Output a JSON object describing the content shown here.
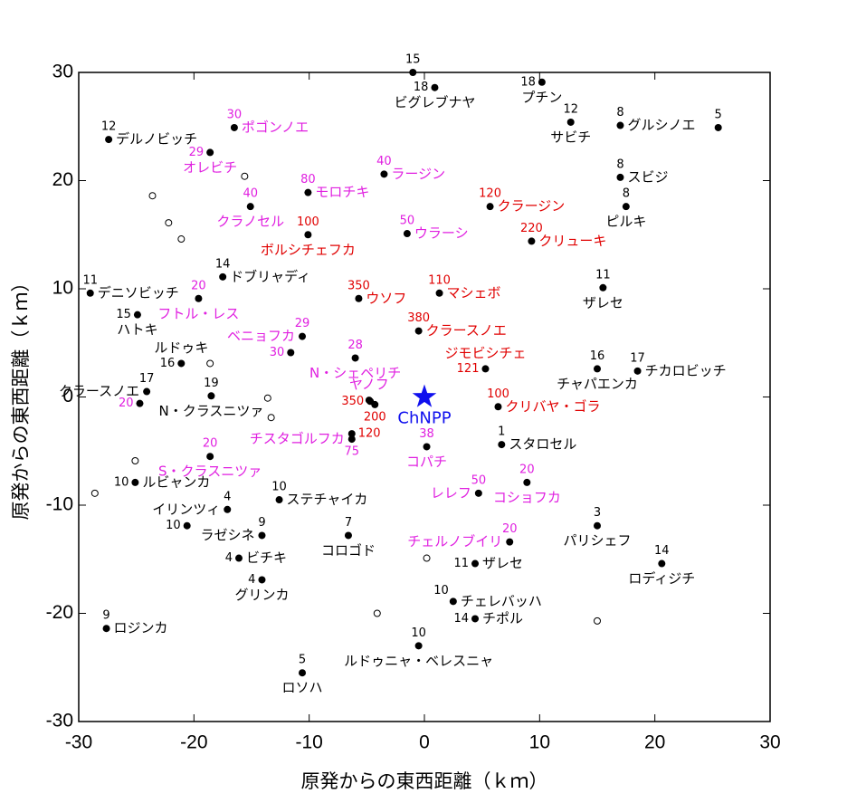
{
  "chart_data": {
    "type": "scatter",
    "x_label": "原発からの東西距離（ｋｍ）",
    "y_label": "原発からの東西距離（ｋｍ）",
    "xlim": [
      -30,
      30
    ],
    "ylim": [
      -30,
      30
    ],
    "xticks": [
      -30,
      -20,
      -10,
      0,
      10,
      20,
      30
    ],
    "yticks": [
      -30,
      -20,
      -10,
      0,
      10,
      20,
      30
    ],
    "site": {
      "name": "ChNPP",
      "x": 0,
      "y": 0,
      "color": "#1010ee"
    },
    "villages": [
      {
        "value": 15,
        "x": -1.0,
        "y": 30.0,
        "color": "black"
      },
      {
        "value": 18,
        "name": "ビグレブナヤ",
        "x": 0.9,
        "y": 28.6,
        "color": "black"
      },
      {
        "value": 18,
        "name": "プチン",
        "x": 10.2,
        "y": 29.1,
        "color": "black"
      },
      {
        "value": 12,
        "name": "サビチ",
        "x": 12.7,
        "y": 25.4,
        "color": "black"
      },
      {
        "value": 8,
        "name": "グルシノエ",
        "x": 17.0,
        "y": 25.1,
        "color": "black"
      },
      {
        "value": 5,
        "x": 25.5,
        "y": 24.9,
        "color": "black"
      },
      {
        "value": 12,
        "name": "デルノビッチ",
        "x": -27.4,
        "y": 23.8,
        "color": "black"
      },
      {
        "value": 8,
        "name": "スビジ",
        "x": 17.0,
        "y": 20.3,
        "color": "black"
      },
      {
        "value": 8,
        "name": "ピルキ",
        "x": 17.5,
        "y": 17.6,
        "color": "black"
      },
      {
        "value": 11,
        "name": "ザレセ",
        "x": 15.5,
        "y": 10.1,
        "color": "black"
      },
      {
        "value": 11,
        "name": "デニソビッチ",
        "x": -29.0,
        "y": 9.6,
        "color": "black"
      },
      {
        "value": 14,
        "name": "ドブリャディ",
        "x": -17.5,
        "y": 11.1,
        "color": "black"
      },
      {
        "value": 15,
        "name": "ハトキ",
        "x": -24.9,
        "y": 7.6,
        "color": "black"
      },
      {
        "value": 16,
        "name": "ルドゥキ",
        "x": -21.1,
        "y": 3.1,
        "color": "black"
      },
      {
        "value": 17,
        "name": "クラースノエ",
        "x": -24.1,
        "y": 0.5,
        "color": "black"
      },
      {
        "value": 19,
        "name": "N・クラスニツァ",
        "x": -18.5,
        "y": 0.1,
        "color": "black"
      },
      {
        "value": 16,
        "name": "チャパエンカ",
        "x": 15.0,
        "y": 2.6,
        "color": "black"
      },
      {
        "value": 17,
        "name": "チカロビッチ",
        "x": 18.5,
        "y": 2.4,
        "color": "black"
      },
      {
        "value": 1,
        "name": "スタロセル",
        "x": 6.7,
        "y": -4.4,
        "color": "black"
      },
      {
        "value": 10,
        "name": "ルビャンカ",
        "x": -25.1,
        "y": -7.9,
        "color": "black"
      },
      {
        "value": 4,
        "name": "イリンツィ",
        "x": -17.1,
        "y": -10.4,
        "color": "black"
      },
      {
        "value": 10,
        "name": "ステチャイカ",
        "x": -12.6,
        "y": -9.5,
        "color": "black"
      },
      {
        "value": 10,
        "x": -20.6,
        "y": -11.9,
        "color": "black"
      },
      {
        "value": 9,
        "name": "ラゼシネ",
        "x": -14.1,
        "y": -12.8,
        "color": "black"
      },
      {
        "value": 4,
        "name": "ビチキ",
        "x": -16.1,
        "y": -14.9,
        "color": "black"
      },
      {
        "value": 4,
        "name": "グリンカ",
        "x": -14.1,
        "y": -16.9,
        "color": "black"
      },
      {
        "value": 7,
        "name": "コロゴド",
        "x": -6.6,
        "y": -12.8,
        "color": "black"
      },
      {
        "value": 3,
        "name": "パリシェフ",
        "x": 15.0,
        "y": -11.9,
        "color": "black"
      },
      {
        "value": 14,
        "name": "ロディジチ",
        "x": 20.6,
        "y": -15.4,
        "color": "black"
      },
      {
        "value": 11,
        "name": "ザレセ",
        "x": 4.4,
        "y": -15.4,
        "color": "black"
      },
      {
        "value": 10,
        "name": "チェレバッハ",
        "x": 2.5,
        "y": -18.9,
        "color": "black"
      },
      {
        "value": 14,
        "name": "チポル",
        "x": 4.4,
        "y": -20.5,
        "color": "black"
      },
      {
        "value": 9,
        "name": "ロジンカ",
        "x": -27.6,
        "y": -21.4,
        "color": "black"
      },
      {
        "value": 10,
        "name": "ルドゥニャ・ベレスニャ",
        "x": -0.5,
        "y": -23.0,
        "color": "black"
      },
      {
        "value": 5,
        "name": "ロソハ",
        "x": -10.6,
        "y": -25.5,
        "color": "black"
      },
      {
        "value": 30,
        "name": "ポゴンノエ",
        "x": -16.5,
        "y": 24.9,
        "color": "#e020e0"
      },
      {
        "value": 29,
        "name": "オレビチ",
        "x": -18.6,
        "y": 22.6,
        "color": "#e020e0"
      },
      {
        "value": 40,
        "name": "クラノセル",
        "x": -15.1,
        "y": 17.6,
        "color": "#e020e0"
      },
      {
        "value": 80,
        "name": "モロチキ",
        "x": -10.1,
        "y": 18.9,
        "color": "#e020e0"
      },
      {
        "value": 40,
        "name": "ラージン",
        "x": -3.5,
        "y": 20.6,
        "color": "#e020e0"
      },
      {
        "value": 50,
        "name": "ウラーシ",
        "x": -1.5,
        "y": 15.1,
        "color": "#e020e0"
      },
      {
        "value": 20,
        "name": "フトル・レス",
        "x": -19.6,
        "y": 9.1,
        "color": "#e020e0"
      },
      {
        "value": 29,
        "name": "ベニョフカ",
        "x": -10.6,
        "y": 5.6,
        "color": "#e020e0"
      },
      {
        "value": 30,
        "x": -11.6,
        "y": 4.1,
        "color": "#e020e0"
      },
      {
        "value": 28,
        "name": "N・シェペリチ",
        "x": -6.0,
        "y": 3.6,
        "color": "#e020e0"
      },
      {
        "value": 20,
        "name": "S・クラスニツァ",
        "x": -18.6,
        "y": -5.5,
        "color": "#e020e0"
      },
      {
        "value": 20,
        "x": -24.7,
        "y": -0.6,
        "color": "#e020e0"
      },
      {
        "value": 75,
        "name": "チスタゴルフカ",
        "x": -6.3,
        "y": -3.9,
        "color": "#e020e0"
      },
      {
        "value": 38,
        "name": "コパチ",
        "x": 0.2,
        "y": -4.6,
        "color": "#e020e0"
      },
      {
        "value": 50,
        "name": "レレフ",
        "x": 4.7,
        "y": -8.9,
        "color": "#e020e0"
      },
      {
        "value": 20,
        "name": "コショフカ",
        "x": 8.9,
        "y": -7.9,
        "color": "#e020e0"
      },
      {
        "value": 20,
        "name": "チェルノブイリ",
        "x": 7.4,
        "y": -13.4,
        "color": "#e020e0"
      },
      {
        "name": "ヤノフ",
        "x": -4.8,
        "y": -0.3,
        "color": "#e020e0"
      },
      {
        "value": 100,
        "name": "ボルシチェフカ",
        "x": -10.1,
        "y": 15.0,
        "color": "#e00000"
      },
      {
        "value": 350,
        "name": "ウソフ",
        "x": -5.7,
        "y": 9.1,
        "color": "#e00000"
      },
      {
        "value": 110,
        "name": "マシェボ",
        "x": 1.3,
        "y": 9.6,
        "color": "#e00000"
      },
      {
        "value": 120,
        "name": "クラージン",
        "x": 5.7,
        "y": 17.6,
        "color": "#e00000"
      },
      {
        "value": 220,
        "name": "クリューキ",
        "x": 9.3,
        "y": 14.4,
        "color": "#e00000"
      },
      {
        "value": 380,
        "name": "クラースノエ",
        "x": -0.5,
        "y": 6.1,
        "color": "#e00000"
      },
      {
        "value": 121,
        "name": "ジモビシチェ",
        "x": 5.3,
        "y": 2.6,
        "color": "#e00000"
      },
      {
        "value": 100,
        "name": "クリバヤ・ゴラ",
        "x": 6.4,
        "y": -0.9,
        "color": "#e00000"
      },
      {
        "value": 350,
        "x": -4.7,
        "y": -0.4,
        "color": "#e00000"
      },
      {
        "value": 200,
        "x": -4.3,
        "y": -0.7,
        "color": "#e00000"
      },
      {
        "value": 120,
        "x": -6.3,
        "y": -3.4,
        "color": "#e00000"
      }
    ],
    "open_points": {
      "x": [
        -23.6,
        -22.2,
        -21.1,
        -15.6,
        -18.6,
        -13.6,
        -13.3,
        -25.1,
        -28.6,
        0.2,
        -4.1,
        15.0
      ],
      "y": [
        18.6,
        16.1,
        14.6,
        20.4,
        3.1,
        -0.1,
        -1.9,
        -5.9,
        -8.9,
        -14.9,
        -20.0,
        -20.7
      ]
    }
  }
}
